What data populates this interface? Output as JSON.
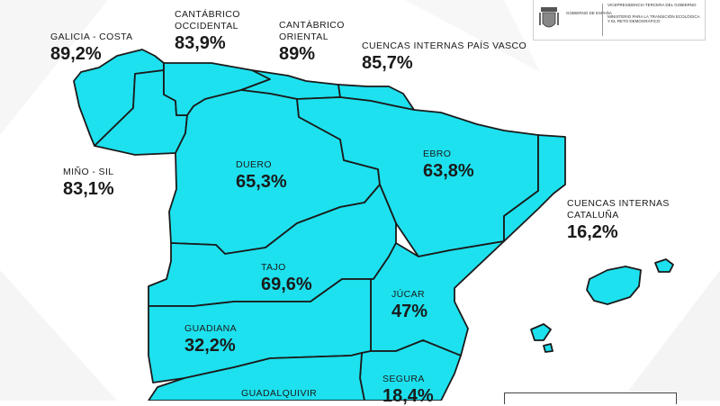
{
  "header": {
    "government": "GOBIERNO DE ESPAÑA",
    "ministry_line1": "VICEPRESIDENCIA TERCERA DEL GOBIERNO",
    "ministry_line2": "MINISTERIO PARA LA TRANSICIÓN ECOLÓGICA Y EL RETO DEMOGRÁFICO"
  },
  "basins": [
    {
      "id": "galicia-costa",
      "name": "GALICIA - COSTA",
      "value": "89,2%"
    },
    {
      "id": "cantabrico-occidental",
      "name": "CANTÁBRICO OCCIDENTAL",
      "value": "83,9%"
    },
    {
      "id": "cantabrico-oriental",
      "name": "CANTÁBRICO ORIENTAL",
      "value": "89%"
    },
    {
      "id": "cuencas-internas-pais-vasco",
      "name": "CUENCAS INTERNAS PAÍS VASCO",
      "value": "85,7%"
    },
    {
      "id": "mino-sil",
      "name": "MIÑO - SIL",
      "value": "83,1%"
    },
    {
      "id": "duero",
      "name": "DUERO",
      "value": "65,3%"
    },
    {
      "id": "ebro",
      "name": "EBRO",
      "value": "63,8%"
    },
    {
      "id": "cuencas-internas-cataluna",
      "name": "CUENCAS INTERNAS CATALUÑA",
      "value": "16,2%"
    },
    {
      "id": "tajo",
      "name": "TAJO",
      "value": "69,6%"
    },
    {
      "id": "jucar",
      "name": "JÚCAR",
      "value": "47%"
    },
    {
      "id": "guadiana",
      "name": "GUADIANA",
      "value": "32,2%"
    },
    {
      "id": "segura",
      "name": "SEGURA",
      "value": "18,4%"
    },
    {
      "id": "guadalquivir",
      "name": "GUADALQUIVIR",
      "value": ""
    }
  ],
  "colors": {
    "basin_fill": "#1de1ee",
    "border": "#1a1a1a",
    "text": "#1a1a1a"
  }
}
